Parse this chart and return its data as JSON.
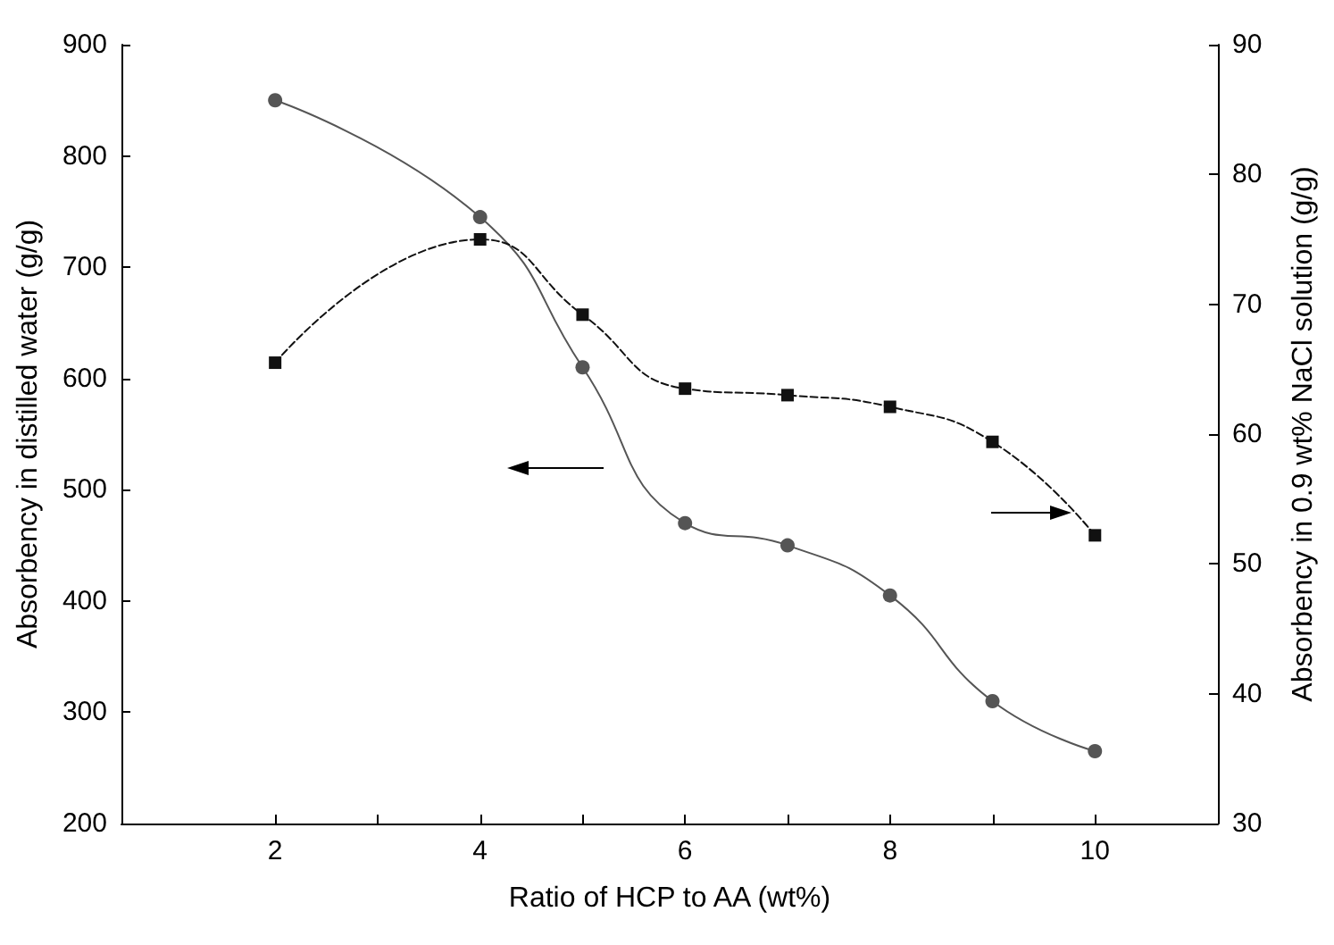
{
  "chart_data": {
    "type": "line",
    "xlabel": "Ratio of HCP to AA (wt%)",
    "ylabel": "Absorbency in distilled water (g/g)",
    "y2label": "Absorbency in 0.9 wt% NaCl solution (g/g)",
    "x": [
      2,
      4,
      5,
      6,
      7,
      8,
      9,
      10
    ],
    "series": [
      {
        "color": "#555555",
        "values": [
          850,
          745,
          610,
          470,
          450,
          405,
          310,
          265
        ],
        "marker": "circle",
        "line_style": "solid"
      },
      {
        "color": "#111111",
        "values": [
          65.5,
          75.0,
          69.2,
          63.5,
          63.0,
          62.1,
          59.4,
          52.2
        ],
        "marker": "square",
        "line_style": "dashed",
        "axis": "y2"
      }
    ],
    "xlim": [
      0.5,
      11.2
    ],
    "xticks": [
      2,
      {
        "value": 3,
        "label": null
      },
      4,
      {
        "value": 5,
        "label": null
      },
      6,
      {
        "value": 7,
        "label": null
      },
      8,
      {
        "value": 9,
        "label": null
      },
      10
    ],
    "ylim": [
      200,
      900
    ],
    "yticks": [
      200,
      300,
      400,
      500,
      600,
      700,
      800,
      900
    ],
    "y2lim": [
      30,
      90
    ],
    "y2ticks": [
      30,
      40,
      50,
      60,
      70,
      80,
      90
    ]
  }
}
